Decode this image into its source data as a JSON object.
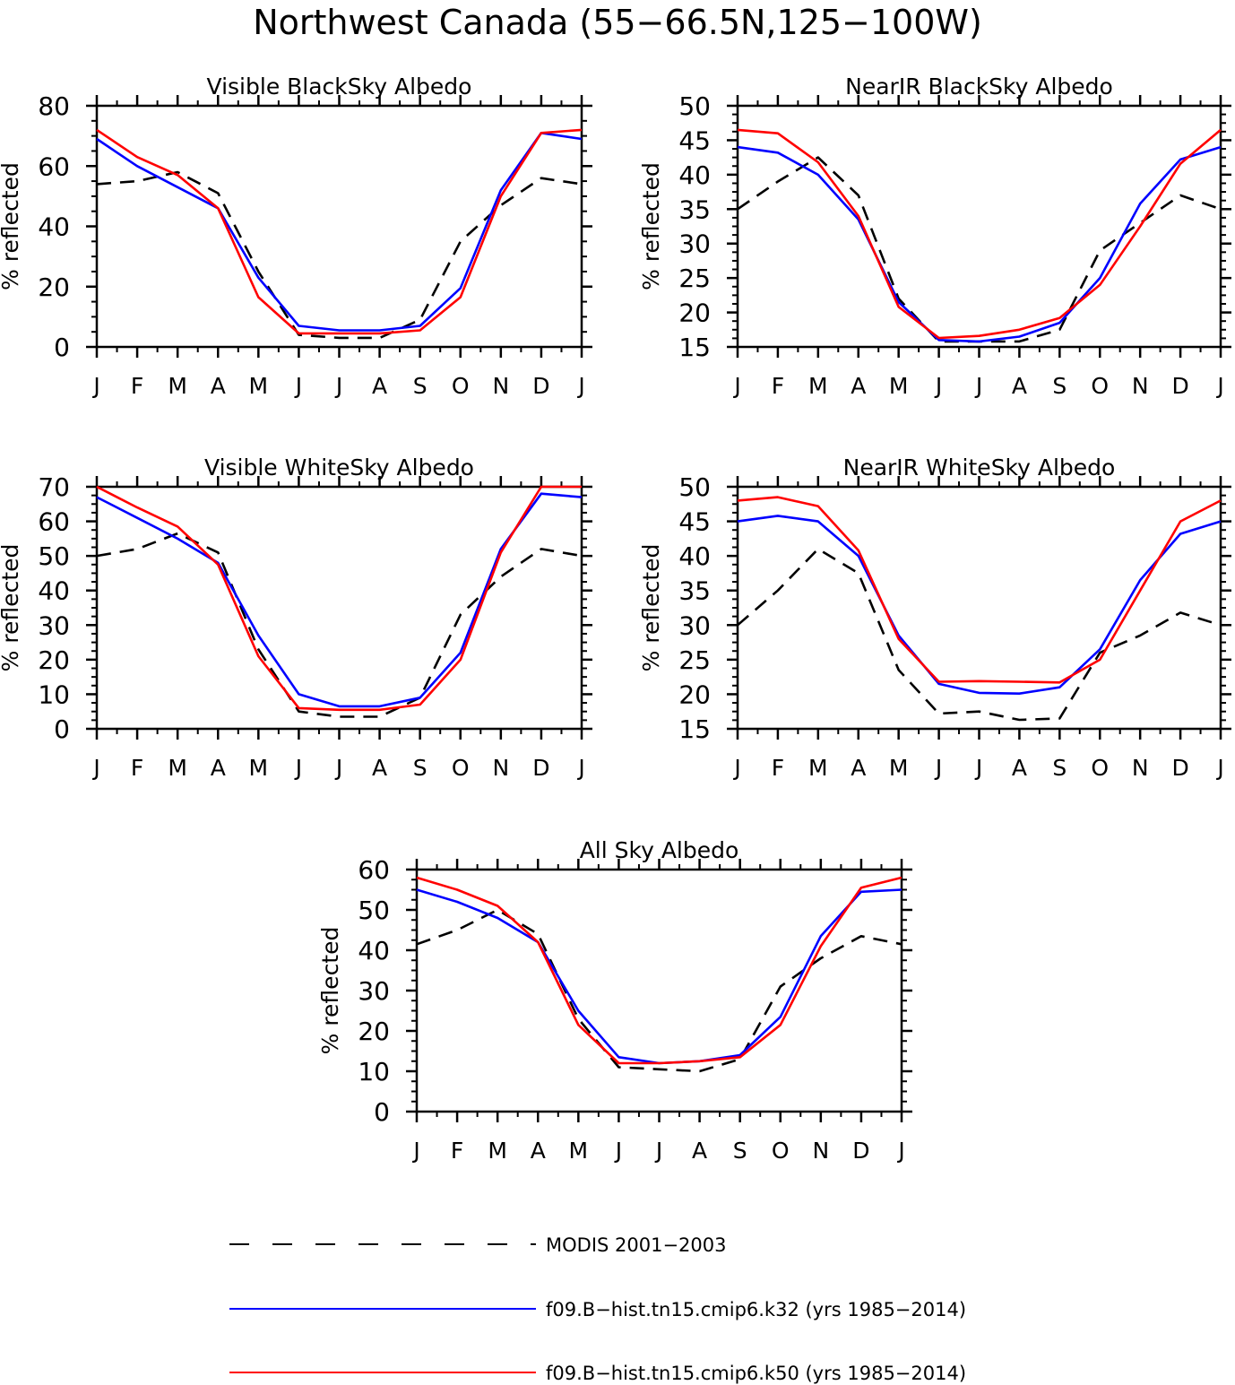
{
  "figure": {
    "title": "Northwest Canada (55−66.5N,125−100W)"
  },
  "legend": [
    {
      "label": "MODIS 2001−2003",
      "color": "#000000",
      "style": "dashed"
    },
    {
      "label": "f09.B−hist.tn15.cmip6.k32 (yrs 1985−2014)",
      "color": "#0000ff",
      "style": "solid"
    },
    {
      "label": "f09.B−hist.tn15.cmip6.k50 (yrs 1985−2014)",
      "color": "#ff0000",
      "style": "solid"
    }
  ],
  "chart_data": [
    {
      "type": "line",
      "title": "Visible BlackSky Albedo",
      "ylabel": "% reflected",
      "categories": [
        "J",
        "F",
        "M",
        "A",
        "M",
        "J",
        "J",
        "A",
        "S",
        "O",
        "N",
        "D",
        "J"
      ],
      "ylim": [
        0,
        80
      ],
      "yticks": [
        0,
        20,
        40,
        60,
        80
      ],
      "series": [
        {
          "name": "MODIS 2001−2003",
          "values": [
            54,
            55,
            58,
            51,
            25,
            4,
            3,
            3,
            9,
            35,
            47,
            56,
            54
          ]
        },
        {
          "name": "f09.B−hist.tn15.cmip6.k32 (yrs 1985−2014)",
          "values": [
            69,
            60,
            53,
            46,
            23,
            7,
            5.5,
            5.5,
            7,
            19.5,
            52,
            71,
            69
          ]
        },
        {
          "name": "f09.B−hist.tn15.cmip6.k50 (yrs 1985−2014)",
          "values": [
            72,
            63,
            57,
            46,
            16.5,
            4.5,
            4.5,
            4.5,
            5.5,
            16.5,
            50,
            71,
            72
          ]
        }
      ]
    },
    {
      "type": "line",
      "title": "NearIR BlackSky Albedo",
      "ylabel": "% reflected",
      "categories": [
        "J",
        "F",
        "M",
        "A",
        "M",
        "J",
        "J",
        "A",
        "S",
        "O",
        "N",
        "D",
        "J"
      ],
      "ylim": [
        15,
        50
      ],
      "yticks": [
        15,
        20,
        25,
        30,
        35,
        40,
        45,
        50
      ],
      "series": [
        {
          "name": "MODIS 2001−2003",
          "values": [
            35,
            39,
            42.5,
            37,
            22,
            15.8,
            15.8,
            15.8,
            17.5,
            29,
            33,
            37,
            35
          ]
        },
        {
          "name": "f09.B−hist.tn15.cmip6.k32 (yrs 1985−2014)",
          "values": [
            44,
            43.2,
            40,
            33.5,
            21.5,
            16,
            15.8,
            16.5,
            18.5,
            25,
            35.8,
            42.2,
            44
          ]
        },
        {
          "name": "f09.B−hist.tn15.cmip6.k50 (yrs 1985−2014)",
          "values": [
            46.5,
            46,
            41.8,
            34,
            20.8,
            16.3,
            16.6,
            17.5,
            19.2,
            24,
            32.5,
            41.6,
            46.5
          ]
        }
      ]
    },
    {
      "type": "line",
      "title": "Visible WhiteSky Albedo",
      "ylabel": "% reflected",
      "categories": [
        "J",
        "F",
        "M",
        "A",
        "M",
        "J",
        "J",
        "A",
        "S",
        "O",
        "N",
        "D",
        "J"
      ],
      "ylim": [
        0,
        70
      ],
      "yticks": [
        0,
        10,
        20,
        30,
        40,
        50,
        60,
        70
      ],
      "series": [
        {
          "name": "MODIS 2001−2003",
          "values": [
            50,
            52,
            56.5,
            51,
            23,
            5,
            3.5,
            3.5,
            9,
            33,
            44,
            52,
            50
          ]
        },
        {
          "name": "f09.B−hist.tn15.cmip6.k32 (yrs 1985−2014)",
          "values": [
            67,
            61,
            55,
            48,
            27,
            10,
            6.5,
            6.5,
            9,
            22,
            52,
            68,
            67
          ]
        },
        {
          "name": "f09.B−hist.tn15.cmip6.k50 (yrs 1985−2014)",
          "values": [
            70,
            64,
            58.5,
            47.5,
            21,
            6,
            5.5,
            5.5,
            7,
            20,
            51,
            70,
            70
          ]
        }
      ]
    },
    {
      "type": "line",
      "title": "NearIR WhiteSky Albedo",
      "ylabel": "% reflected",
      "categories": [
        "J",
        "F",
        "M",
        "A",
        "M",
        "J",
        "J",
        "A",
        "S",
        "O",
        "N",
        "D",
        "J"
      ],
      "ylim": [
        15,
        50
      ],
      "yticks": [
        15,
        20,
        25,
        30,
        35,
        40,
        45,
        50
      ],
      "series": [
        {
          "name": "MODIS 2001−2003",
          "values": [
            30,
            35,
            41,
            37.5,
            23.5,
            17.2,
            17.5,
            16.3,
            16.5,
            26,
            28.5,
            31.8,
            30
          ]
        },
        {
          "name": "f09.B−hist.tn15.cmip6.k32 (yrs 1985−2014)",
          "values": [
            45,
            45.8,
            45,
            40,
            28.5,
            21.5,
            20.2,
            20.1,
            21,
            26.5,
            36.5,
            43.2,
            45
          ]
        },
        {
          "name": "f09.B−hist.tn15.cmip6.k50 (yrs 1985−2014)",
          "values": [
            48,
            48.5,
            47.2,
            40.8,
            28,
            21.8,
            21.9,
            21.8,
            21.7,
            25,
            35,
            45,
            48
          ]
        }
      ]
    },
    {
      "type": "line",
      "title": "All Sky Albedo",
      "ylabel": "% reflected",
      "categories": [
        "J",
        "F",
        "M",
        "A",
        "M",
        "J",
        "J",
        "A",
        "S",
        "O",
        "N",
        "D",
        "J"
      ],
      "ylim": [
        0,
        60
      ],
      "yticks": [
        0,
        10,
        20,
        30,
        40,
        50,
        60
      ],
      "series": [
        {
          "name": "MODIS 2001−2003",
          "values": [
            41.5,
            45,
            50,
            44,
            23,
            11,
            10.5,
            10,
            13,
            31,
            38,
            43.5,
            41.5
          ]
        },
        {
          "name": "f09.B−hist.tn15.cmip6.k32 (yrs 1985−2014)",
          "values": [
            55,
            52,
            48,
            42,
            25,
            13.5,
            12,
            12.5,
            14,
            23.5,
            43.5,
            54.5,
            55
          ]
        },
        {
          "name": "f09.B−hist.tn15.cmip6.k50 (yrs 1985−2014)",
          "values": [
            58,
            55,
            51,
            42,
            21.5,
            12,
            12,
            12.5,
            13.5,
            21.5,
            41,
            55.5,
            58
          ]
        }
      ]
    }
  ]
}
